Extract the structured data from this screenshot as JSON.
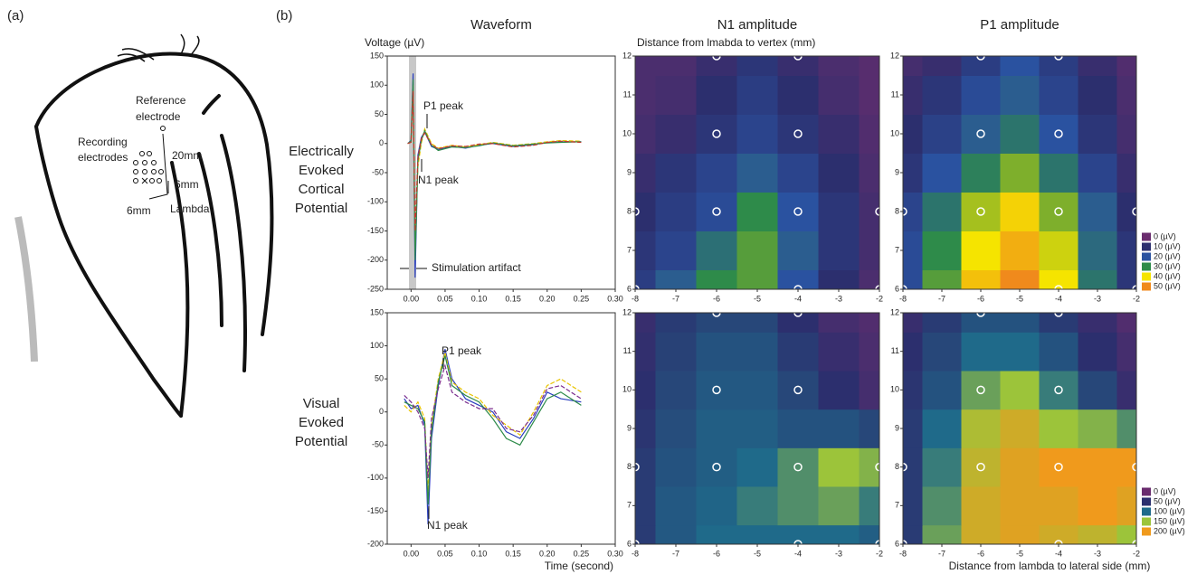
{
  "figure": {
    "panel_a": "(a)",
    "panel_b": "(b)",
    "reference": [
      "Reference",
      "electrode"
    ],
    "recording": [
      "Recording",
      "electrodes"
    ],
    "dist_20": "20mm",
    "dist_6v": "6mm",
    "dist_6h": "6mm",
    "lambda": "Lambda",
    "row_labels": [
      [
        "Electrically",
        "Evoked",
        "Cortical",
        "Potential"
      ],
      [
        "Visual",
        "Evoked",
        "Potential"
      ]
    ]
  },
  "chart_data": [
    {
      "type": "line",
      "title": "Waveform",
      "ylabel": "Voltage (µV)",
      "x": [
        -0.005,
        0,
        0.003,
        0.006,
        0.01,
        0.015,
        0.02,
        0.03,
        0.04,
        0.06,
        0.08,
        0.1,
        0.12,
        0.15,
        0.18,
        0.2,
        0.22,
        0.25
      ],
      "series": [
        {
          "color": "#2b3fbf",
          "values": [
            0,
            5,
            120,
            -230,
            -20,
            10,
            20,
            -5,
            -10,
            -5,
            -8,
            -3,
            0,
            -5,
            -2,
            2,
            3,
            3
          ]
        },
        {
          "color": "#e8c400",
          "values": [
            0,
            3,
            100,
            -180,
            -40,
            0,
            25,
            0,
            -8,
            -3,
            -6,
            -2,
            2,
            -3,
            0,
            3,
            5,
            4
          ]
        },
        {
          "color": "#2e8b4a",
          "values": [
            0,
            4,
            110,
            -200,
            -30,
            5,
            22,
            -3,
            -12,
            -6,
            -7,
            -4,
            1,
            -4,
            -1,
            1,
            2,
            3
          ]
        },
        {
          "color": "#c0392b",
          "values": [
            0,
            2,
            90,
            -150,
            -25,
            8,
            18,
            -2,
            -9,
            -4,
            -5,
            -1,
            0,
            -6,
            -3,
            2,
            4,
            2
          ]
        }
      ],
      "xlim": [
        -0.035,
        0.3
      ],
      "xticks": [
        {
          "value": 0,
          "label": "0.00"
        },
        {
          "value": 0.05,
          "label": "0.05"
        },
        {
          "value": 0.1,
          "label": "0.10"
        },
        {
          "value": 0.15,
          "label": "0.15"
        },
        {
          "value": 0.2,
          "label": "0.20"
        },
        {
          "value": 0.25,
          "label": "0.25"
        },
        {
          "value": 0.3,
          "label": "0.30"
        }
      ],
      "ylim": [
        -250,
        150
      ],
      "yticks": [
        -250,
        -200,
        -150,
        -100,
        -50,
        0,
        50,
        100,
        150
      ],
      "annotations": [
        "P1 peak",
        "N1 peak",
        "Stimulation artifact"
      ]
    },
    {
      "type": "heatmap",
      "title": "N1 amplitude",
      "ylabel": "Distance from lmabda to vertex (mm)",
      "x": [
        -8,
        -7,
        -6,
        -5,
        -4,
        -3,
        -2
      ],
      "y": [
        6,
        7,
        8,
        9,
        10,
        11,
        12
      ],
      "z": [
        [
          14,
          22,
          30,
          32,
          20,
          10,
          5
        ],
        [
          12,
          16,
          25,
          32,
          22,
          12,
          6
        ],
        [
          10,
          14,
          18,
          30,
          20,
          12,
          6
        ],
        [
          8,
          12,
          16,
          22,
          16,
          10,
          5
        ],
        [
          6,
          8,
          12,
          16,
          12,
          8,
          4
        ],
        [
          5,
          6,
          10,
          14,
          10,
          6,
          3
        ],
        [
          5,
          5,
          8,
          12,
          8,
          5,
          3
        ]
      ],
      "markers": {
        "x": [
          -8,
          -6,
          -6,
          -6,
          -4,
          -4,
          -4,
          -4,
          -2,
          -8,
          -2
        ],
        "y": [
          8,
          12,
          10,
          8,
          12,
          10,
          8,
          6,
          8,
          6,
          6
        ]
      },
      "xlim": [
        -8,
        -2
      ],
      "xticks": [
        -8,
        -7,
        -6,
        -5,
        -4,
        -3,
        -2
      ],
      "ylim": [
        6,
        12
      ],
      "yticks": [
        6,
        7,
        8,
        9,
        10,
        11,
        12
      ]
    },
    {
      "type": "heatmap",
      "title": "P1 amplitude",
      "x": [
        -8,
        -7,
        -6,
        -5,
        -4,
        -3,
        -2
      ],
      "y": [
        6,
        7,
        8,
        9,
        10,
        11,
        12
      ],
      "z": [
        [
          18,
          32,
          44,
          52,
          40,
          26,
          12
        ],
        [
          18,
          30,
          40,
          46,
          38,
          24,
          12
        ],
        [
          16,
          26,
          36,
          42,
          34,
          22,
          10
        ],
        [
          12,
          20,
          28,
          34,
          26,
          16,
          8
        ],
        [
          10,
          15,
          22,
          26,
          20,
          12,
          6
        ],
        [
          8,
          12,
          18,
          22,
          16,
          10,
          5
        ],
        [
          6,
          8,
          14,
          20,
          14,
          8,
          4
        ]
      ],
      "markers": {
        "x": [
          -8,
          -6,
          -6,
          -6,
          -4,
          -4,
          -4,
          -4,
          -2,
          -8,
          -2
        ],
        "y": [
          8,
          12,
          10,
          8,
          12,
          10,
          8,
          6,
          8,
          6,
          6
        ]
      },
      "xlim": [
        -8,
        -2
      ],
      "xticks": [
        -8,
        -7,
        -6,
        -5,
        -4,
        -3,
        -2
      ],
      "ylim": [
        6,
        12
      ],
      "yticks": [
        6,
        7,
        8,
        9,
        10,
        11,
        12
      ],
      "colorscale": [
        {
          "value": 0,
          "label": "0 (µV)",
          "color": "#6a2c6e"
        },
        {
          "value": 10,
          "label": "10 (µV)",
          "color": "#2c2f6e"
        },
        {
          "value": 20,
          "label": "20 (µV)",
          "color": "#2a52a0"
        },
        {
          "value": 30,
          "label": "30 (µV)",
          "color": "#2e8b4a"
        },
        {
          "value": 40,
          "label": "40 (µV)",
          "color": "#f5e400"
        },
        {
          "value": 50,
          "label": "50 (µV)",
          "color": "#f08a1c"
        }
      ]
    },
    {
      "type": "line",
      "xlabel": "Time (second)",
      "x": [
        -0.01,
        0,
        0.01,
        0.02,
        0.025,
        0.03,
        0.04,
        0.05,
        0.06,
        0.08,
        0.1,
        0.12,
        0.14,
        0.16,
        0.18,
        0.2,
        0.22,
        0.25
      ],
      "series": [
        {
          "color": "#2b3fbf",
          "values": [
            20,
            5,
            10,
            -20,
            -170,
            -40,
            40,
            95,
            50,
            20,
            10,
            0,
            -30,
            -40,
            -10,
            30,
            20,
            15
          ]
        },
        {
          "color": "#e8c400",
          "values": [
            10,
            0,
            15,
            -10,
            -120,
            -20,
            50,
            90,
            45,
            30,
            20,
            -5,
            -20,
            -35,
            0,
            40,
            50,
            30
          ]
        },
        {
          "color": "#2e8b4a",
          "values": [
            15,
            10,
            5,
            -15,
            -140,
            -30,
            45,
            85,
            40,
            25,
            15,
            -10,
            -40,
            -50,
            -15,
            20,
            30,
            10
          ]
        },
        {
          "color": "#7b2d8e",
          "values": [
            25,
            15,
            0,
            -25,
            -100,
            -10,
            35,
            70,
            30,
            15,
            5,
            5,
            -25,
            -30,
            -5,
            35,
            40,
            20
          ]
        }
      ],
      "xlim": [
        -0.035,
        0.3
      ],
      "xticks": [
        {
          "value": 0,
          "label": "0.00"
        },
        {
          "value": 0.05,
          "label": "0.05"
        },
        {
          "value": 0.1,
          "label": "0.10"
        },
        {
          "value": 0.15,
          "label": "0.15"
        },
        {
          "value": 0.2,
          "label": "0.20"
        },
        {
          "value": 0.25,
          "label": "0.25"
        },
        {
          "value": 0.3,
          "label": "0.30"
        }
      ],
      "ylim": [
        -200,
        150
      ],
      "yticks": [
        -200,
        -150,
        -100,
        -50,
        0,
        50,
        100,
        150
      ],
      "annotations": [
        "P1 peak",
        "N1 peak"
      ]
    },
    {
      "type": "heatmap",
      "x": [
        -8,
        -7,
        -6,
        -5,
        -4,
        -3,
        -2
      ],
      "y": [
        6,
        7,
        8,
        9,
        10,
        11,
        12
      ],
      "z": [
        [
          60,
          85,
          100,
          100,
          100,
          100,
          90
        ],
        [
          60,
          85,
          95,
          110,
          120,
          130,
          110
        ],
        [
          60,
          80,
          90,
          100,
          120,
          150,
          140
        ],
        [
          55,
          75,
          90,
          90,
          80,
          80,
          70
        ],
        [
          50,
          70,
          85,
          85,
          70,
          50,
          30
        ],
        [
          45,
          65,
          80,
          80,
          60,
          40,
          25
        ],
        [
          40,
          60,
          70,
          70,
          50,
          30,
          20
        ]
      ],
      "markers": {
        "x": [
          -8,
          -6,
          -6,
          -6,
          -4,
          -4,
          -4,
          -4,
          -2,
          -8,
          -2
        ],
        "y": [
          8,
          12,
          10,
          8,
          12,
          10,
          8,
          6,
          8,
          6,
          6
        ]
      },
      "xlim": [
        -8,
        -2
      ],
      "xticks": [
        -8,
        -7,
        -6,
        -5,
        -4,
        -3,
        -2
      ],
      "ylim": [
        6,
        12
      ],
      "yticks": [
        6,
        7,
        8,
        9,
        10,
        11,
        12
      ]
    },
    {
      "type": "heatmap",
      "xlabel": "Distance from lambda to lateral side (mm)",
      "x": [
        -8,
        -7,
        -6,
        -5,
        -4,
        -3,
        -2
      ],
      "y": [
        6,
        7,
        8,
        9,
        10,
        11,
        12
      ],
      "z": [
        [
          60,
          130,
          180,
          190,
          180,
          170,
          150
        ],
        [
          60,
          120,
          180,
          190,
          190,
          200,
          190
        ],
        [
          60,
          110,
          170,
          190,
          200,
          210,
          220
        ],
        [
          60,
          100,
          160,
          180,
          150,
          140,
          120
        ],
        [
          55,
          80,
          130,
          150,
          110,
          70,
          40
        ],
        [
          50,
          70,
          100,
          100,
          80,
          50,
          30
        ],
        [
          40,
          60,
          80,
          80,
          60,
          40,
          20
        ]
      ],
      "markers": {
        "x": [
          -8,
          -6,
          -6,
          -6,
          -4,
          -4,
          -4,
          -4,
          -2,
          -8,
          -2
        ],
        "y": [
          8,
          12,
          10,
          8,
          12,
          10,
          8,
          6,
          8,
          6,
          6
        ]
      },
      "xlim": [
        -8,
        -2
      ],
      "xticks": [
        -8,
        -7,
        -6,
        -5,
        -4,
        -3,
        -2
      ],
      "ylim": [
        6,
        12
      ],
      "yticks": [
        6,
        7,
        8,
        9,
        10,
        11,
        12
      ],
      "colorscale": [
        {
          "value": 0,
          "label": "0 (µV)",
          "color": "#6a2c6e"
        },
        {
          "value": 50,
          "label": "50 (µV)",
          "color": "#2c2f6e"
        },
        {
          "value": 100,
          "label": "100 (µV)",
          "color": "#1f6a8a"
        },
        {
          "value": 150,
          "label": "150 (µV)",
          "color": "#9cc43a"
        },
        {
          "value": 200,
          "label": "200 (µV)",
          "color": "#f09a1c"
        }
      ]
    }
  ]
}
